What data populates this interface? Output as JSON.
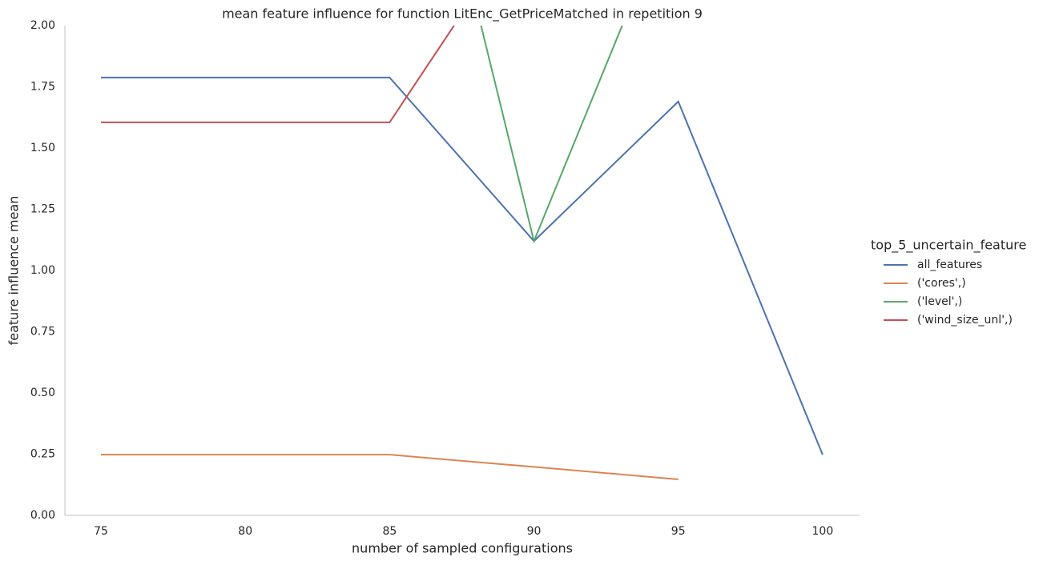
{
  "chart_data": {
    "type": "line",
    "title": "mean feature influence for function LitEnc_GetPriceMatched in repetition 9",
    "x_label": "number of sampled configurations",
    "y_label": "feature influence mean",
    "legend_title": "top_5_uncertain_feature",
    "legend_position": "right",
    "grid": false,
    "x": [
      75,
      80,
      85,
      90,
      95,
      100
    ],
    "series": [
      {
        "name": "all_features",
        "color": "#4c72b0",
        "values": [
          1.788,
          1.788,
          1.788,
          1.12,
          1.69,
          0.248
        ]
      },
      {
        "name": "('cores',)",
        "color": "#dd8452",
        "values": [
          0.248,
          0.248,
          0.248,
          0.198,
          0.147,
          null
        ]
      },
      {
        "name": "('level',)",
        "color": "#55a868",
        "values": [
          null,
          null,
          3.52,
          1.12,
          2.56,
          null
        ]
      },
      {
        "name": "('wind_size_unl',)",
        "color": "#c44e52",
        "values": [
          1.605,
          1.605,
          1.605,
          2.49,
          null,
          null
        ]
      }
    ],
    "xlim": [
      73.75,
      101.28
    ],
    "xticks": [
      75,
      80,
      85,
      90,
      95,
      100
    ],
    "ylim": [
      0,
      2
    ],
    "yticks": [
      {
        "value": 0,
        "label": "0.00"
      },
      {
        "value": 0.25,
        "label": "0.25"
      },
      {
        "value": 0.5,
        "label": "0.50"
      },
      {
        "value": 0.75,
        "label": "0.75"
      },
      {
        "value": 1,
        "label": "1.00"
      },
      {
        "value": 1.25,
        "label": "1.25"
      },
      {
        "value": 1.5,
        "label": "1.50"
      },
      {
        "value": 1.75,
        "label": "1.75"
      },
      {
        "value": 2,
        "label": "2.00"
      }
    ]
  }
}
